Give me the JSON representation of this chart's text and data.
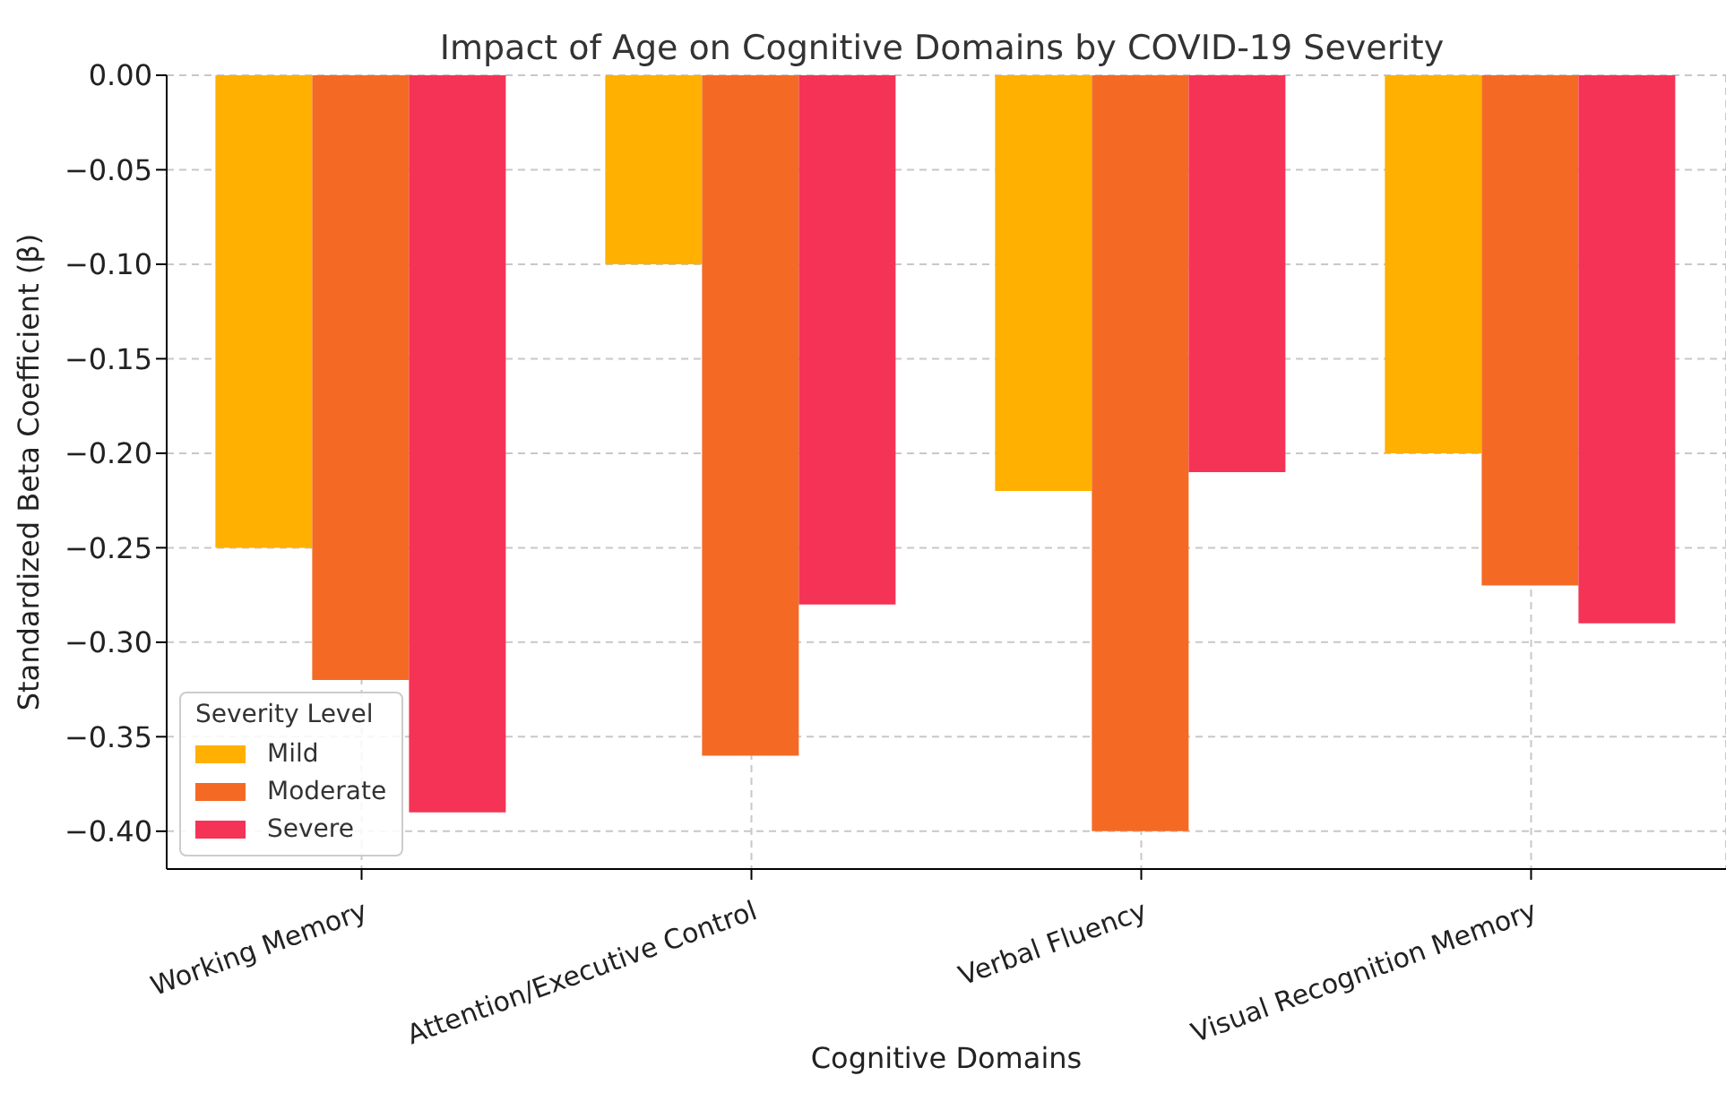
{
  "chart_data": {
    "type": "bar",
    "title": "Impact of Age on Cognitive Domains by COVID-19 Severity",
    "xlabel": "Cognitive Domains",
    "ylabel": "Standardized Beta Coefficient (β)",
    "legend_title": "Severity Level",
    "categories": [
      "Working Memory",
      "Attention/Executive Control",
      "Verbal Fluency",
      "Visual Recognition Memory"
    ],
    "series": [
      {
        "name": "Mild",
        "color": "#ffb000",
        "values": [
          -0.25,
          -0.1,
          -0.22,
          -0.2
        ]
      },
      {
        "name": "Moderate",
        "color": "#f46a25",
        "values": [
          -0.32,
          -0.36,
          -0.4,
          -0.27
        ]
      },
      {
        "name": "Severe",
        "color": "#f53356",
        "values": [
          -0.39,
          -0.28,
          -0.21,
          -0.29
        ]
      }
    ],
    "ylim": [
      -0.42,
      0
    ],
    "yticks": [
      {
        "value": 0,
        "label": "0.00"
      },
      {
        "value": -0.05,
        "label": "−0.05"
      },
      {
        "value": -0.1,
        "label": "−0.10"
      },
      {
        "value": -0.15,
        "label": "−0.15"
      },
      {
        "value": -0.2,
        "label": "−0.20"
      },
      {
        "value": -0.25,
        "label": "−0.25"
      },
      {
        "value": -0.3,
        "label": "−0.30"
      },
      {
        "value": -0.35,
        "label": "−0.35"
      },
      {
        "value": -0.4,
        "label": "−0.40"
      }
    ],
    "grid": true,
    "legend": "bottom left"
  }
}
